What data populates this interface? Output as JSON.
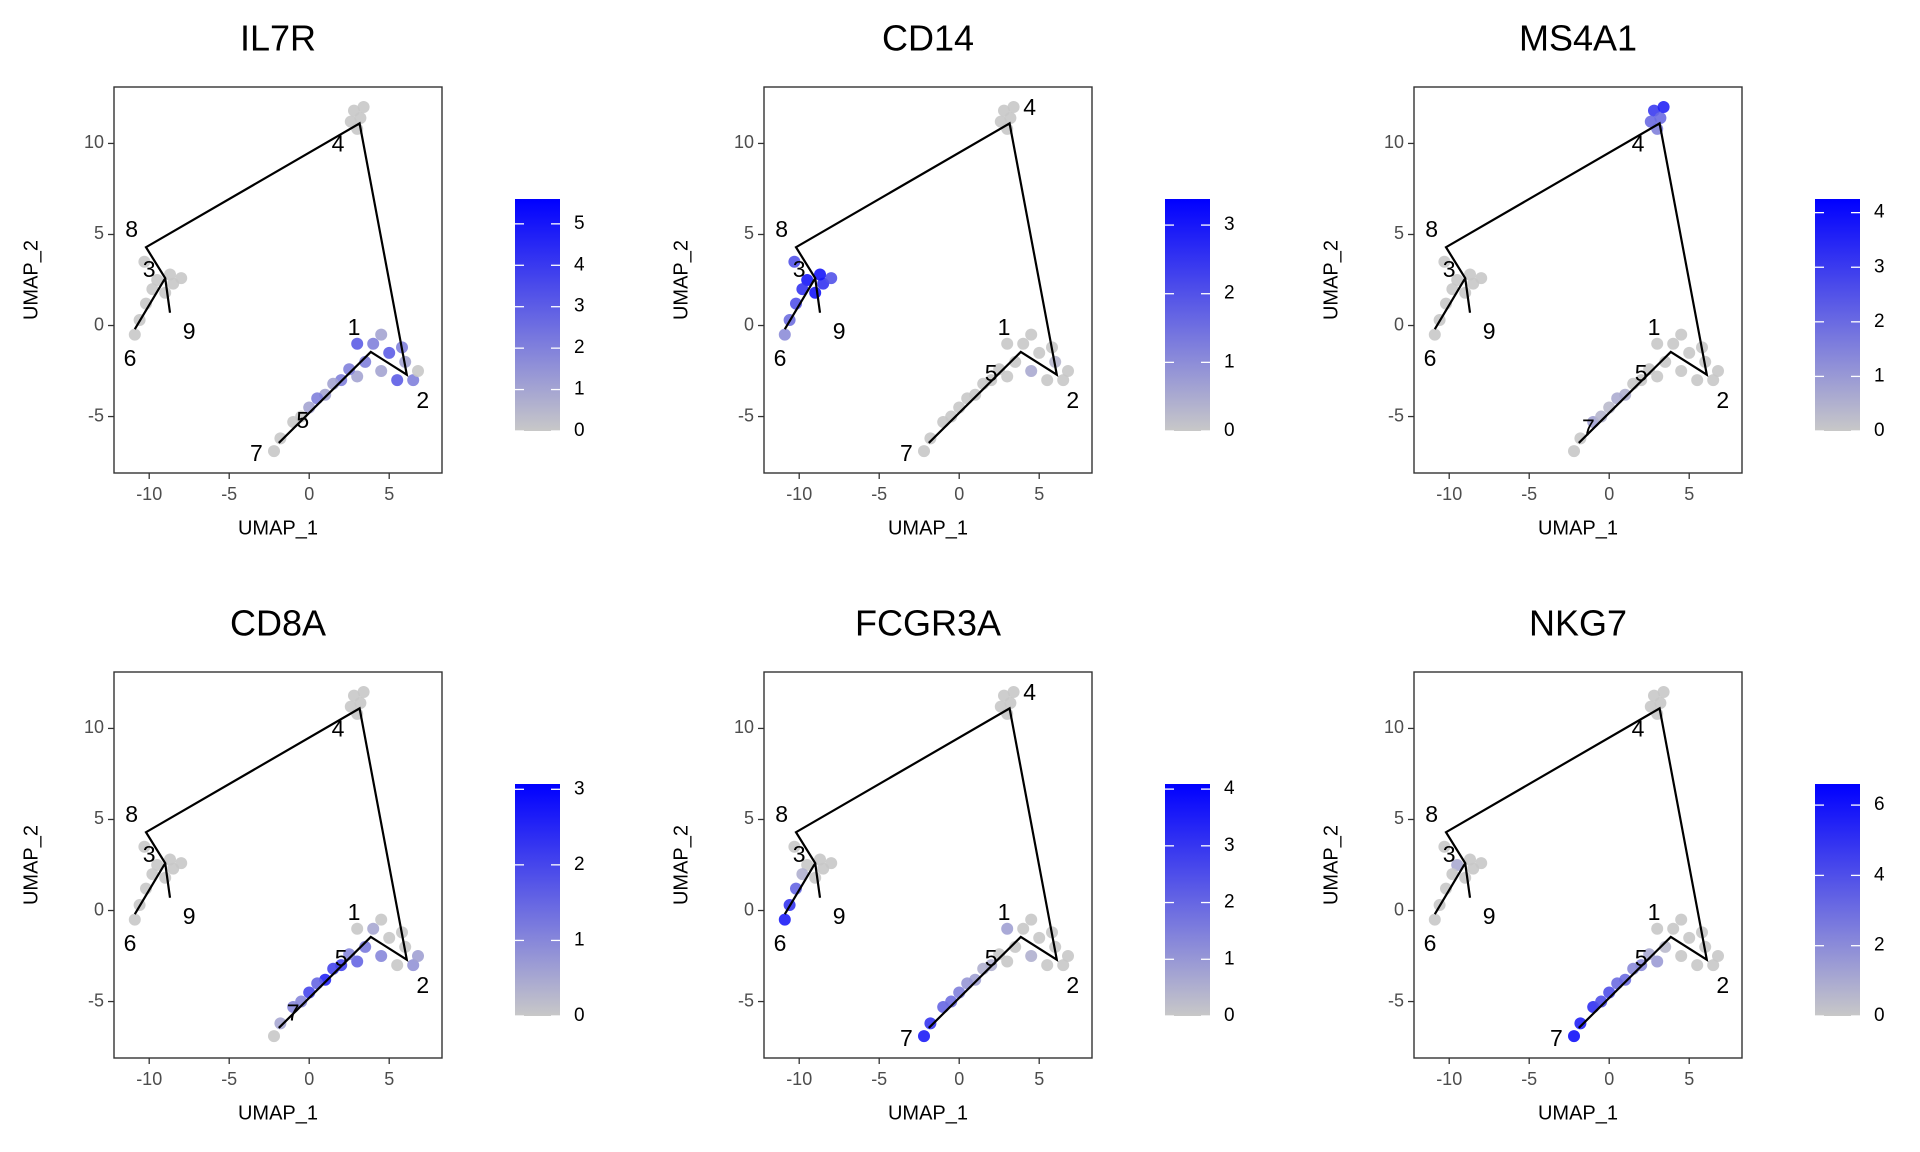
{
  "chart_data": [
    {
      "type": "scatter",
      "title": "IL7R",
      "xlabel": "UMAP_1",
      "ylabel": "UMAP_2",
      "xlim": [
        -12.2,
        8.3
      ],
      "ylim": [
        -8.1,
        13.1
      ],
      "xticks": [
        -10,
        -5,
        0,
        5
      ],
      "yticks": [
        -5,
        0,
        5,
        10
      ],
      "x": [
        2.8,
        3.2,
        3.0,
        3.4,
        2.6,
        -9.5,
        -8.5,
        -9.0,
        -8.0,
        -9.8,
        -10.2,
        -10.6,
        -10.9,
        -10.3,
        -8.7,
        4,
        5,
        6,
        6.5,
        5.5,
        4.5,
        3.5,
        3,
        4.5,
        6.8,
        5.8,
        3,
        2,
        1,
        0,
        -1,
        -1.8,
        -2.2,
        0.5,
        1.5,
        -0.5,
        2.5
      ],
      "y": [
        11.8,
        11.4,
        10.8,
        12.0,
        11.2,
        2.5,
        2.3,
        1.8,
        2.6,
        2.0,
        1.2,
        0.3,
        -0.5,
        3.5,
        2.8,
        -1,
        -1.5,
        -2,
        -3,
        -3,
        -2.5,
        -2,
        -1,
        -0.5,
        -2.5,
        -1.2,
        -2.8,
        -3,
        -3.8,
        -4.5,
        -5.3,
        -6.2,
        -6.9,
        -4,
        -3.2,
        -5,
        -2.4
      ],
      "values": [
        0,
        0,
        0,
        0,
        0,
        0,
        0,
        0,
        0,
        0,
        0,
        0,
        0,
        0,
        0,
        2,
        3,
        1,
        2,
        3,
        1,
        2,
        3,
        1,
        0,
        2,
        1,
        2,
        1,
        1,
        0,
        0,
        0,
        2,
        1,
        0,
        2
      ],
      "colorbar": {
        "lim": [
          0,
          5.6
        ],
        "ticks": [
          0,
          1,
          2,
          3,
          4,
          5
        ],
        "colors": [
          "#c8c8c8",
          "#0000ff"
        ]
      },
      "trajectory": {
        "x": [
          -10.9,
          -9.0,
          -10.2,
          3.15,
          6.1,
          3.85,
          -1.9,
          null,
          -9.0,
          -8.7
        ],
        "y": [
          -0.2,
          2.6,
          4.3,
          11.1,
          -2.7,
          -1.45,
          -6.45,
          null,
          2.6,
          0.7
        ]
      },
      "nodes": {
        "labels": [
          "1",
          "2",
          "3",
          "4",
          "5",
          "6",
          "7",
          "8",
          "9"
        ],
        "x": [
          2.8,
          7.1,
          -10.0,
          1.8,
          -0.4,
          -11.2,
          -3.3,
          -11.1,
          -7.5
        ],
        "y": [
          -0.2,
          -4.2,
          3.0,
          9.9,
          -5.3,
          -1.9,
          -7.1,
          5.2,
          -0.4
        ]
      }
    },
    {
      "type": "scatter",
      "title": "CD14",
      "xlabel": "UMAP_1",
      "ylabel": "UMAP_2",
      "xlim": [
        -12.2,
        8.3
      ],
      "ylim": [
        -8.1,
        13.1
      ],
      "xticks": [
        -10,
        -5,
        0,
        5
      ],
      "yticks": [
        -5,
        0,
        5,
        10
      ],
      "x": [
        2.8,
        3.2,
        3.0,
        3.4,
        2.6,
        -9.5,
        -8.5,
        -9.0,
        -8.0,
        -9.8,
        -10.2,
        -10.6,
        -10.9,
        -10.3,
        -8.7,
        4,
        5,
        6,
        6.5,
        5.5,
        4.5,
        3.5,
        3,
        4.5,
        6.8,
        5.8,
        3,
        2,
        1,
        0,
        -1,
        -1.8,
        -2.2,
        0.5,
        1.5,
        -0.5,
        2.5
      ],
      "y": [
        11.8,
        11.4,
        10.8,
        12.0,
        11.2,
        2.5,
        2.3,
        1.8,
        2.6,
        2.0,
        1.2,
        0.3,
        -0.5,
        3.5,
        2.8,
        -1,
        -1.5,
        -2,
        -3,
        -3,
        -2.5,
        -2,
        -1,
        -0.5,
        -2.5,
        -1.2,
        -2.8,
        -3,
        -3.8,
        -4.5,
        -5.3,
        -6.2,
        -6.9,
        -4,
        -3.2,
        -5,
        -2.4
      ],
      "values": [
        0,
        0,
        0,
        0,
        0,
        3,
        2.5,
        3,
        2,
        2.5,
        2,
        1.5,
        1,
        2,
        3,
        0,
        0,
        0.3,
        0,
        0,
        0.5,
        0,
        0,
        0,
        0,
        0,
        0,
        0,
        0,
        0,
        0,
        0,
        0,
        0,
        0,
        0,
        0
      ],
      "colorbar": {
        "lim": [
          0,
          3.38
        ],
        "ticks": [
          0,
          1,
          2,
          3
        ],
        "colors": [
          "#c8c8c8",
          "#0000ff"
        ]
      },
      "trajectory": {
        "x": [
          -10.9,
          -9.0,
          -10.2,
          3.15,
          6.1,
          3.85,
          -1.9,
          null,
          -9.0,
          -8.7
        ],
        "y": [
          -0.2,
          2.6,
          4.3,
          11.1,
          -2.7,
          -1.45,
          -6.45,
          null,
          2.6,
          0.7
        ]
      },
      "nodes": {
        "labels": [
          "1",
          "2",
          "3",
          "4",
          "5",
          "6",
          "7",
          "8",
          "9"
        ],
        "x": [
          2.8,
          7.1,
          -10.0,
          4.4,
          2.0,
          -11.2,
          -3.3,
          -11.1,
          -7.5
        ],
        "y": [
          -0.2,
          -4.2,
          3.0,
          11.9,
          -2.7,
          -1.9,
          -7.1,
          5.2,
          -0.4
        ]
      }
    },
    {
      "type": "scatter",
      "title": "MS4A1",
      "xlabel": "UMAP_1",
      "ylabel": "UMAP_2",
      "xlim": [
        -12.2,
        8.3
      ],
      "ylim": [
        -8.1,
        13.1
      ],
      "xticks": [
        -10,
        -5,
        0,
        5
      ],
      "yticks": [
        -5,
        0,
        5,
        10
      ],
      "x": [
        2.8,
        3.2,
        3.0,
        3.4,
        2.6,
        -9.5,
        -8.5,
        -9.0,
        -8.0,
        -9.8,
        -10.2,
        -10.6,
        -10.9,
        -10.3,
        -8.7,
        4,
        5,
        6,
        6.5,
        5.5,
        4.5,
        3.5,
        3,
        4.5,
        6.8,
        5.8,
        3,
        2,
        1,
        0,
        -1,
        -1.8,
        -2.2,
        0.5,
        1.5,
        -0.5,
        2.5
      ],
      "y": [
        11.8,
        11.4,
        10.8,
        12.0,
        11.2,
        2.5,
        2.3,
        1.8,
        2.6,
        2.0,
        1.2,
        0.3,
        -0.5,
        3.5,
        2.8,
        -1,
        -1.5,
        -2,
        -3,
        -3,
        -2.5,
        -2,
        -1,
        -0.5,
        -2.5,
        -1.2,
        -2.8,
        -3,
        -3.8,
        -4.5,
        -5.3,
        -6.2,
        -6.9,
        -4,
        -3.2,
        -5,
        -2.4
      ],
      "values": [
        3,
        2,
        1.5,
        3.5,
        2,
        0,
        0,
        0,
        0,
        0,
        0,
        0,
        0,
        0,
        0,
        0,
        0,
        0,
        0,
        0,
        0,
        0,
        0,
        0,
        0,
        0,
        0,
        0,
        0.5,
        0.3,
        0.8,
        0,
        0,
        0.6,
        0,
        0.4,
        0
      ],
      "colorbar": {
        "lim": [
          0,
          4.25
        ],
        "ticks": [
          0,
          1,
          2,
          3,
          4
        ],
        "colors": [
          "#c8c8c8",
          "#0000ff"
        ]
      },
      "trajectory": {
        "x": [
          -10.9,
          -9.0,
          -10.2,
          3.15,
          6.1,
          3.85,
          -1.9,
          null,
          -9.0,
          -8.7
        ],
        "y": [
          -0.2,
          2.6,
          4.3,
          11.1,
          -2.7,
          -1.45,
          -6.45,
          null,
          2.6,
          0.7
        ]
      },
      "nodes": {
        "labels": [
          "1",
          "2",
          "3",
          "4",
          "5",
          "6",
          "7",
          "8",
          "9"
        ],
        "x": [
          2.8,
          7.1,
          -10.0,
          1.8,
          2.0,
          -11.2,
          -1.3,
          -11.1,
          -7.5
        ],
        "y": [
          -0.2,
          -4.2,
          3.0,
          9.9,
          -2.7,
          -1.9,
          -5.7,
          5.2,
          -0.4
        ]
      }
    },
    {
      "type": "scatter",
      "title": "CD8A",
      "xlabel": "UMAP_1",
      "ylabel": "UMAP_2",
      "xlim": [
        -12.2,
        8.3
      ],
      "ylim": [
        -8.1,
        13.1
      ],
      "xticks": [
        -10,
        -5,
        0,
        5
      ],
      "yticks": [
        -5,
        0,
        5,
        10
      ],
      "x": [
        2.8,
        3.2,
        3.0,
        3.4,
        2.6,
        -9.5,
        -8.5,
        -9.0,
        -8.0,
        -9.8,
        -10.2,
        -10.6,
        -10.9,
        -10.3,
        -8.7,
        4,
        5,
        6,
        6.5,
        5.5,
        4.5,
        3.5,
        3,
        4.5,
        6.8,
        5.8,
        3,
        2,
        1,
        0,
        -1,
        -1.8,
        -2.2,
        0.5,
        1.5,
        -0.5,
        2.5
      ],
      "y": [
        11.8,
        11.4,
        10.8,
        12.0,
        11.2,
        2.5,
        2.3,
        1.8,
        2.6,
        2.0,
        1.2,
        0.3,
        -0.5,
        3.5,
        2.8,
        -1,
        -1.5,
        -2,
        -3,
        -3,
        -2.5,
        -2,
        -1,
        -0.5,
        -2.5,
        -1.2,
        -2.8,
        -3,
        -3.8,
        -4.5,
        -5.3,
        -6.2,
        -6.9,
        -4,
        -3.2,
        -5,
        -2.4
      ],
      "values": [
        0,
        0,
        0,
        0,
        0,
        0,
        0,
        0,
        0,
        0,
        0,
        0,
        0,
        0,
        0,
        0.5,
        0,
        0,
        0.8,
        0,
        1,
        1.2,
        0,
        0,
        0.6,
        0,
        1.5,
        2,
        2.5,
        2,
        1,
        0.5,
        0,
        1.5,
        2,
        1,
        1
      ],
      "colorbar": {
        "lim": [
          0,
          3.07
        ],
        "ticks": [
          0,
          1,
          2,
          3
        ],
        "colors": [
          "#c8c8c8",
          "#0000ff"
        ]
      },
      "trajectory": {
        "x": [
          -10.9,
          -9.0,
          -10.2,
          3.15,
          6.1,
          3.85,
          -1.9,
          null,
          -9.0,
          -8.7
        ],
        "y": [
          -0.2,
          2.6,
          4.3,
          11.1,
          -2.7,
          -1.45,
          -6.45,
          null,
          2.6,
          0.7
        ]
      },
      "nodes": {
        "labels": [
          "1",
          "2",
          "3",
          "4",
          "5",
          "6",
          "7",
          "8",
          "9"
        ],
        "x": [
          2.8,
          7.1,
          -10.0,
          1.8,
          2.0,
          -11.2,
          -1.0,
          -11.1,
          -7.5
        ],
        "y": [
          -0.2,
          -4.2,
          3.0,
          9.9,
          -2.7,
          -1.9,
          -5.7,
          5.2,
          -0.4
        ]
      }
    },
    {
      "type": "scatter",
      "title": "FCGR3A",
      "xlabel": "UMAP_1",
      "ylabel": "UMAP_2",
      "xlim": [
        -12.2,
        8.3
      ],
      "ylim": [
        -8.1,
        13.1
      ],
      "xticks": [
        -10,
        -5,
        0,
        5
      ],
      "yticks": [
        -5,
        0,
        5,
        10
      ],
      "x": [
        2.8,
        3.2,
        3.0,
        3.4,
        2.6,
        -9.5,
        -8.5,
        -9.0,
        -8.0,
        -9.8,
        -10.2,
        -10.6,
        -10.9,
        -10.3,
        -8.7,
        4,
        5,
        6,
        6.5,
        5.5,
        4.5,
        3.5,
        3,
        4.5,
        6.8,
        5.8,
        3,
        2,
        1,
        0,
        -1,
        -1.8,
        -2.2,
        0.5,
        1.5,
        -0.5,
        2.5
      ],
      "y": [
        11.8,
        11.4,
        10.8,
        12.0,
        11.2,
        2.5,
        2.3,
        1.8,
        2.6,
        2.0,
        1.2,
        0.3,
        -0.5,
        3.5,
        2.8,
        -1,
        -1.5,
        -2,
        -3,
        -3,
        -2.5,
        -2,
        -1,
        -0.5,
        -2.5,
        -1.2,
        -2.8,
        -3,
        -3.8,
        -4.5,
        -5.3,
        -6.2,
        -6.9,
        -4,
        -3.2,
        -5,
        -2.4
      ],
      "values": [
        0,
        0,
        0,
        0,
        0,
        0,
        0,
        0,
        0,
        0.5,
        2,
        3,
        3.5,
        0,
        0,
        0,
        0,
        0,
        0,
        0,
        0.5,
        0,
        0.8,
        0,
        0,
        0,
        0,
        0.5,
        0.8,
        1.5,
        2,
        3,
        3.5,
        1,
        0.5,
        1.8,
        0
      ],
      "colorbar": {
        "lim": [
          0,
          4.09
        ],
        "ticks": [
          0,
          1,
          2,
          3,
          4
        ],
        "colors": [
          "#c8c8c8",
          "#0000ff"
        ]
      },
      "trajectory": {
        "x": [
          -10.9,
          -9.0,
          -10.2,
          3.15,
          6.1,
          3.85,
          -1.9,
          null,
          -9.0,
          -8.7
        ],
        "y": [
          -0.2,
          2.6,
          4.3,
          11.1,
          -2.7,
          -1.45,
          -6.45,
          null,
          2.6,
          0.7
        ]
      },
      "nodes": {
        "labels": [
          "1",
          "2",
          "3",
          "4",
          "5",
          "6",
          "7",
          "8",
          "9"
        ],
        "x": [
          2.8,
          7.1,
          -10.0,
          4.4,
          2.0,
          -11.2,
          -3.3,
          -11.1,
          -7.5
        ],
        "y": [
          -0.2,
          -4.2,
          3.0,
          11.9,
          -2.7,
          -1.9,
          -7.1,
          5.2,
          -0.4
        ]
      }
    },
    {
      "type": "scatter",
      "title": "NKG7",
      "xlabel": "UMAP_1",
      "ylabel": "UMAP_2",
      "xlim": [
        -12.2,
        8.3
      ],
      "ylim": [
        -8.1,
        13.1
      ],
      "xticks": [
        -10,
        -5,
        0,
        5
      ],
      "yticks": [
        -5,
        0,
        5,
        10
      ],
      "x": [
        2.8,
        3.2,
        3.0,
        3.4,
        2.6,
        -9.5,
        -8.5,
        -9.0,
        -8.0,
        -9.8,
        -10.2,
        -10.6,
        -10.9,
        -10.3,
        -8.7,
        4,
        5,
        6,
        6.5,
        5.5,
        4.5,
        3.5,
        3,
        4.5,
        6.8,
        5.8,
        3,
        2,
        1,
        0,
        -1,
        -1.8,
        -2.2,
        0.5,
        1.5,
        -0.5,
        2.5
      ],
      "y": [
        11.8,
        11.4,
        10.8,
        12.0,
        11.2,
        2.5,
        2.3,
        1.8,
        2.6,
        2.0,
        1.2,
        0.3,
        -0.5,
        3.5,
        2.8,
        -1,
        -1.5,
        -2,
        -3,
        -3,
        -2.5,
        -2,
        -1,
        -0.5,
        -2.5,
        -1.2,
        -2.8,
        -3,
        -3.8,
        -4.5,
        -5.3,
        -6.2,
        -6.9,
        -4,
        -3.2,
        -5,
        -2.4
      ],
      "values": [
        0,
        0,
        0,
        0,
        0,
        1,
        0,
        0,
        0,
        0,
        0,
        0,
        0,
        0,
        0,
        0,
        0,
        0,
        0,
        0,
        0,
        0.5,
        0,
        0,
        0,
        0,
        1.5,
        2,
        3,
        4,
        5,
        5.5,
        6,
        3,
        2,
        4,
        1
      ],
      "colorbar": {
        "lim": [
          0,
          6.6
        ],
        "ticks": [
          0,
          2,
          4,
          6
        ],
        "colors": [
          "#c8c8c8",
          "#0000ff"
        ]
      },
      "trajectory": {
        "x": [
          -10.9,
          -9.0,
          -10.2,
          3.15,
          6.1,
          3.85,
          -1.9,
          null,
          -9.0,
          -8.7
        ],
        "y": [
          -0.2,
          2.6,
          4.3,
          11.1,
          -2.7,
          -1.45,
          -6.45,
          null,
          2.6,
          0.7
        ]
      },
      "nodes": {
        "labels": [
          "1",
          "2",
          "3",
          "4",
          "5",
          "6",
          "7",
          "8",
          "9"
        ],
        "x": [
          2.8,
          7.1,
          -10.0,
          1.8,
          2.0,
          -11.2,
          -3.3,
          -11.1,
          -7.5
        ],
        "y": [
          -0.2,
          -4.2,
          3.0,
          9.9,
          -2.7,
          -1.9,
          -7.1,
          5.2,
          -0.4
        ]
      }
    }
  ]
}
